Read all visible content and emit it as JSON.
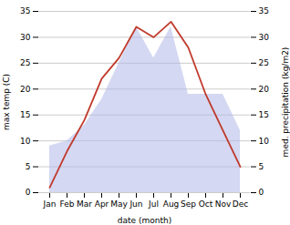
{
  "chart_data": {
    "type": "line",
    "categories": [
      "Jan",
      "Feb",
      "Mar",
      "Apr",
      "May",
      "Jun",
      "Jul",
      "Aug",
      "Sep",
      "Oct",
      "Nov",
      "Dec"
    ],
    "xlabel": "date (month)",
    "ylabel": "max temp (C)",
    "y2label": "med. precipitation (kg/m2)",
    "series": [
      {
        "type": "area",
        "axis": "y2",
        "color": "#b0b8e8",
        "values": [
          9,
          10,
          13,
          18,
          25,
          32,
          26,
          32,
          19,
          19,
          19,
          12
        ]
      },
      {
        "type": "line",
        "color": "#c0392b",
        "values": [
          1,
          8,
          14,
          22,
          26,
          32,
          30,
          33,
          28,
          19,
          12,
          5
        ]
      }
    ],
    "ylim": [
      0,
      35
    ],
    "yticks": [
      0,
      5,
      10,
      15,
      20,
      25,
      30,
      35
    ],
    "y2lim": [
      0,
      35
    ],
    "y2ticks": [
      0,
      5,
      10,
      15,
      20,
      25,
      30,
      35
    ],
    "grid": true
  }
}
